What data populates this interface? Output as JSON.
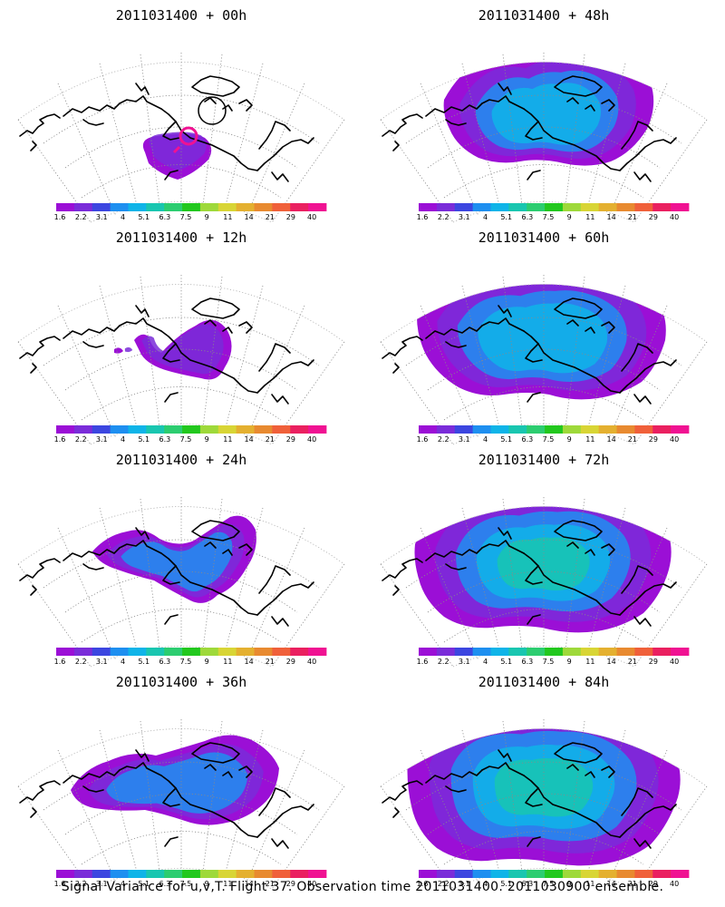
{
  "figure": {
    "caption": "Signal Variance for u,v,T. Flight 37. Observation time 2011031400. 2011030900 ensemble."
  },
  "colorbar": {
    "colors": [
      "#9b0fd6",
      "#7a2cd9",
      "#3c46e0",
      "#1e8ff0",
      "#0fb4e8",
      "#19c6b0",
      "#2ccd70",
      "#22c81e",
      "#9ed93a",
      "#d8d535",
      "#e4b030",
      "#e88a30",
      "#f0603a",
      "#ea2060",
      "#f01292"
    ],
    "labels": [
      "1.6",
      "2.2",
      "3.1",
      "4",
      "5.1",
      "6.3",
      "7.5",
      "9",
      "11",
      "14",
      "21",
      "29",
      "40"
    ]
  },
  "panels": [
    {
      "title": "2011031400 + 00h",
      "lead_hours": 0
    },
    {
      "title": "2011031400 + 48h",
      "lead_hours": 48
    },
    {
      "title": "2011031400 + 12h",
      "lead_hours": 12
    },
    {
      "title": "2011031400 + 60h",
      "lead_hours": 60
    },
    {
      "title": "2011031400 + 24h",
      "lead_hours": 24
    },
    {
      "title": "2011031400 + 72h",
      "lead_hours": 72
    },
    {
      "title": "2011031400 + 36h",
      "lead_hours": 36
    },
    {
      "title": "2011031400 + 84h",
      "lead_hours": 84
    }
  ]
}
